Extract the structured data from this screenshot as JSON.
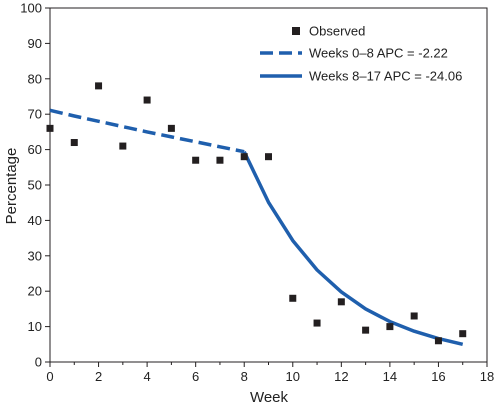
{
  "chart_data": {
    "type": "scatter",
    "xlabel": "Week",
    "ylabel": "Percentage",
    "xlim": [
      0,
      18
    ],
    "ylim": [
      0,
      100
    ],
    "xticks": [
      0,
      2,
      4,
      6,
      8,
      10,
      12,
      14,
      16,
      18
    ],
    "yticks": [
      0,
      10,
      20,
      30,
      40,
      50,
      60,
      70,
      80,
      90,
      100
    ],
    "grid": false,
    "legend_position": "top-right",
    "series": [
      {
        "name": "Observed",
        "kind": "scatter",
        "color": "#231f20",
        "x": [
          0,
          1,
          2,
          3,
          4,
          5,
          6,
          7,
          8,
          9,
          10,
          11,
          12,
          13,
          14,
          15,
          16,
          17
        ],
        "y": [
          66,
          62,
          78,
          61,
          74,
          66,
          57,
          57,
          58,
          58,
          18,
          11,
          17,
          9,
          10,
          13,
          6,
          8
        ]
      },
      {
        "name": "Weeks 0–8 APC = -2.22",
        "kind": "line-dashed",
        "color": "#1f5fad",
        "x": [
          0,
          1,
          2,
          3,
          4,
          5,
          6,
          7,
          8
        ],
        "y": [
          71.1,
          69.5,
          68.0,
          66.5,
          65.0,
          63.6,
          62.2,
          60.8,
          59.4
        ]
      },
      {
        "name": "Weeks 8–17 APC = -24.06",
        "kind": "line-solid",
        "color": "#1f5fad",
        "x": [
          8,
          9,
          10,
          11,
          12,
          13,
          14,
          15,
          16,
          17
        ],
        "y": [
          59.4,
          45.1,
          34.3,
          26.0,
          19.8,
          15.0,
          11.4,
          8.7,
          6.6,
          5.0
        ]
      }
    ]
  }
}
